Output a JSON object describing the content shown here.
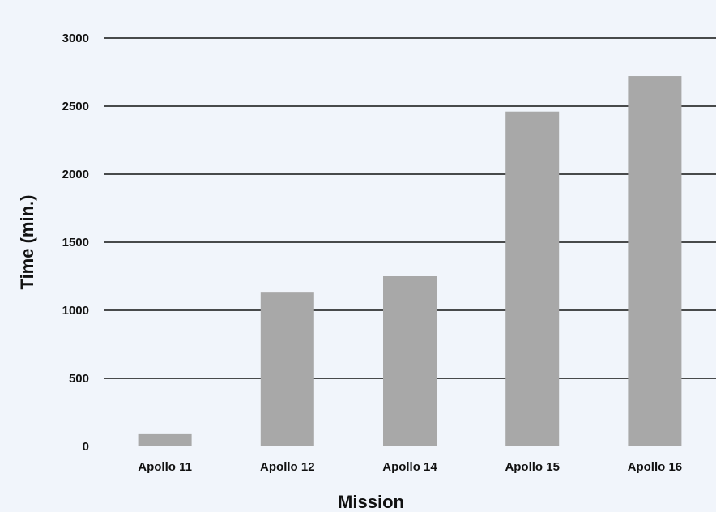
{
  "chart_data": {
    "type": "bar",
    "title": "",
    "xlabel": "Mission",
    "ylabel": "Time (min.)",
    "categories": [
      "Apollo 11",
      "Apollo 12",
      "Apollo 14",
      "Apollo 15",
      "Apollo 16"
    ],
    "values": [
      90,
      1130,
      1250,
      2460,
      2720
    ],
    "ylim": [
      0,
      3000
    ],
    "yticks": [
      0,
      500,
      1000,
      1500,
      2000,
      2500,
      3000
    ],
    "grid": true,
    "legend": "none",
    "colors": {
      "bar": "#a8a8a8",
      "grid": "#111111",
      "background": "#f1f5fb"
    }
  }
}
